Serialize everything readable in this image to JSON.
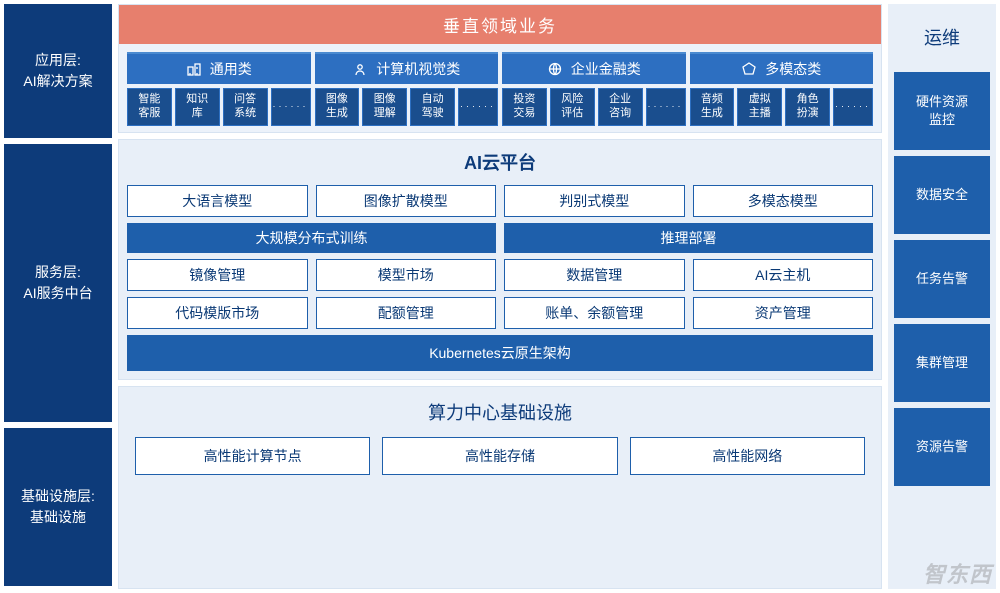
{
  "colors": {
    "dark_blue": "#0d3b7a",
    "mid_blue": "#1e5fab",
    "cat_blue": "#2d6fc1",
    "sub_blue": "#1a4e8e",
    "panel_bg": "#e8eff8",
    "top_panel_bg": "#ecf2fa",
    "banner_red": "#e77f6d",
    "white": "#ffffff",
    "border_blue": "#1e5fab",
    "text_blue": "#0a3975"
  },
  "left": {
    "app": {
      "line1": "应用层:",
      "line2": "AI解决方案"
    },
    "svc": {
      "line1": "服务层:",
      "line2": "AI服务中台"
    },
    "inf": {
      "line1": "基础设施层:",
      "line2": "基础设施"
    }
  },
  "top": {
    "banner": "垂直领域业务",
    "categories": [
      {
        "label": "通用类",
        "icon": "building-icon",
        "subs": [
          "智能\n客服",
          "知识\n库",
          "问答\n系统",
          "······"
        ]
      },
      {
        "label": "计算机视觉类",
        "icon": "vision-icon",
        "subs": [
          "图像\n生成",
          "图像\n理解",
          "自动\n驾驶",
          "······"
        ]
      },
      {
        "label": "企业金融类",
        "icon": "globe-icon",
        "subs": [
          "投资\n交易",
          "风险\n评估",
          "企业\n咨询",
          "······"
        ]
      },
      {
        "label": "多模态类",
        "icon": "polygon-icon",
        "subs": [
          "音频\n生成",
          "虚拟\n主播",
          "角色\n扮演",
          "······"
        ]
      }
    ]
  },
  "service": {
    "title": "AI云平台",
    "row1": [
      "大语言模型",
      "图像扩散模型",
      "判别式模型",
      "多模态模型"
    ],
    "row2": [
      "大规模分布式训练",
      "推理部署"
    ],
    "row3": [
      "镜像管理",
      "模型市场",
      "数据管理",
      "AI云主机"
    ],
    "row4": [
      "代码模版市场",
      "配额管理",
      "账单、余额管理",
      "资产管理"
    ],
    "full": "Kubernetes云原生架构"
  },
  "infra": {
    "title": "算力中心基础设施",
    "boxes": [
      "高性能计算节点",
      "高性能存储",
      "高性能网络"
    ]
  },
  "right": {
    "title": "运维",
    "boxes": [
      "硬件资源\n监控",
      "数据安全",
      "任务告警",
      "集群管理",
      "资源告警"
    ]
  },
  "watermark": "智东西"
}
